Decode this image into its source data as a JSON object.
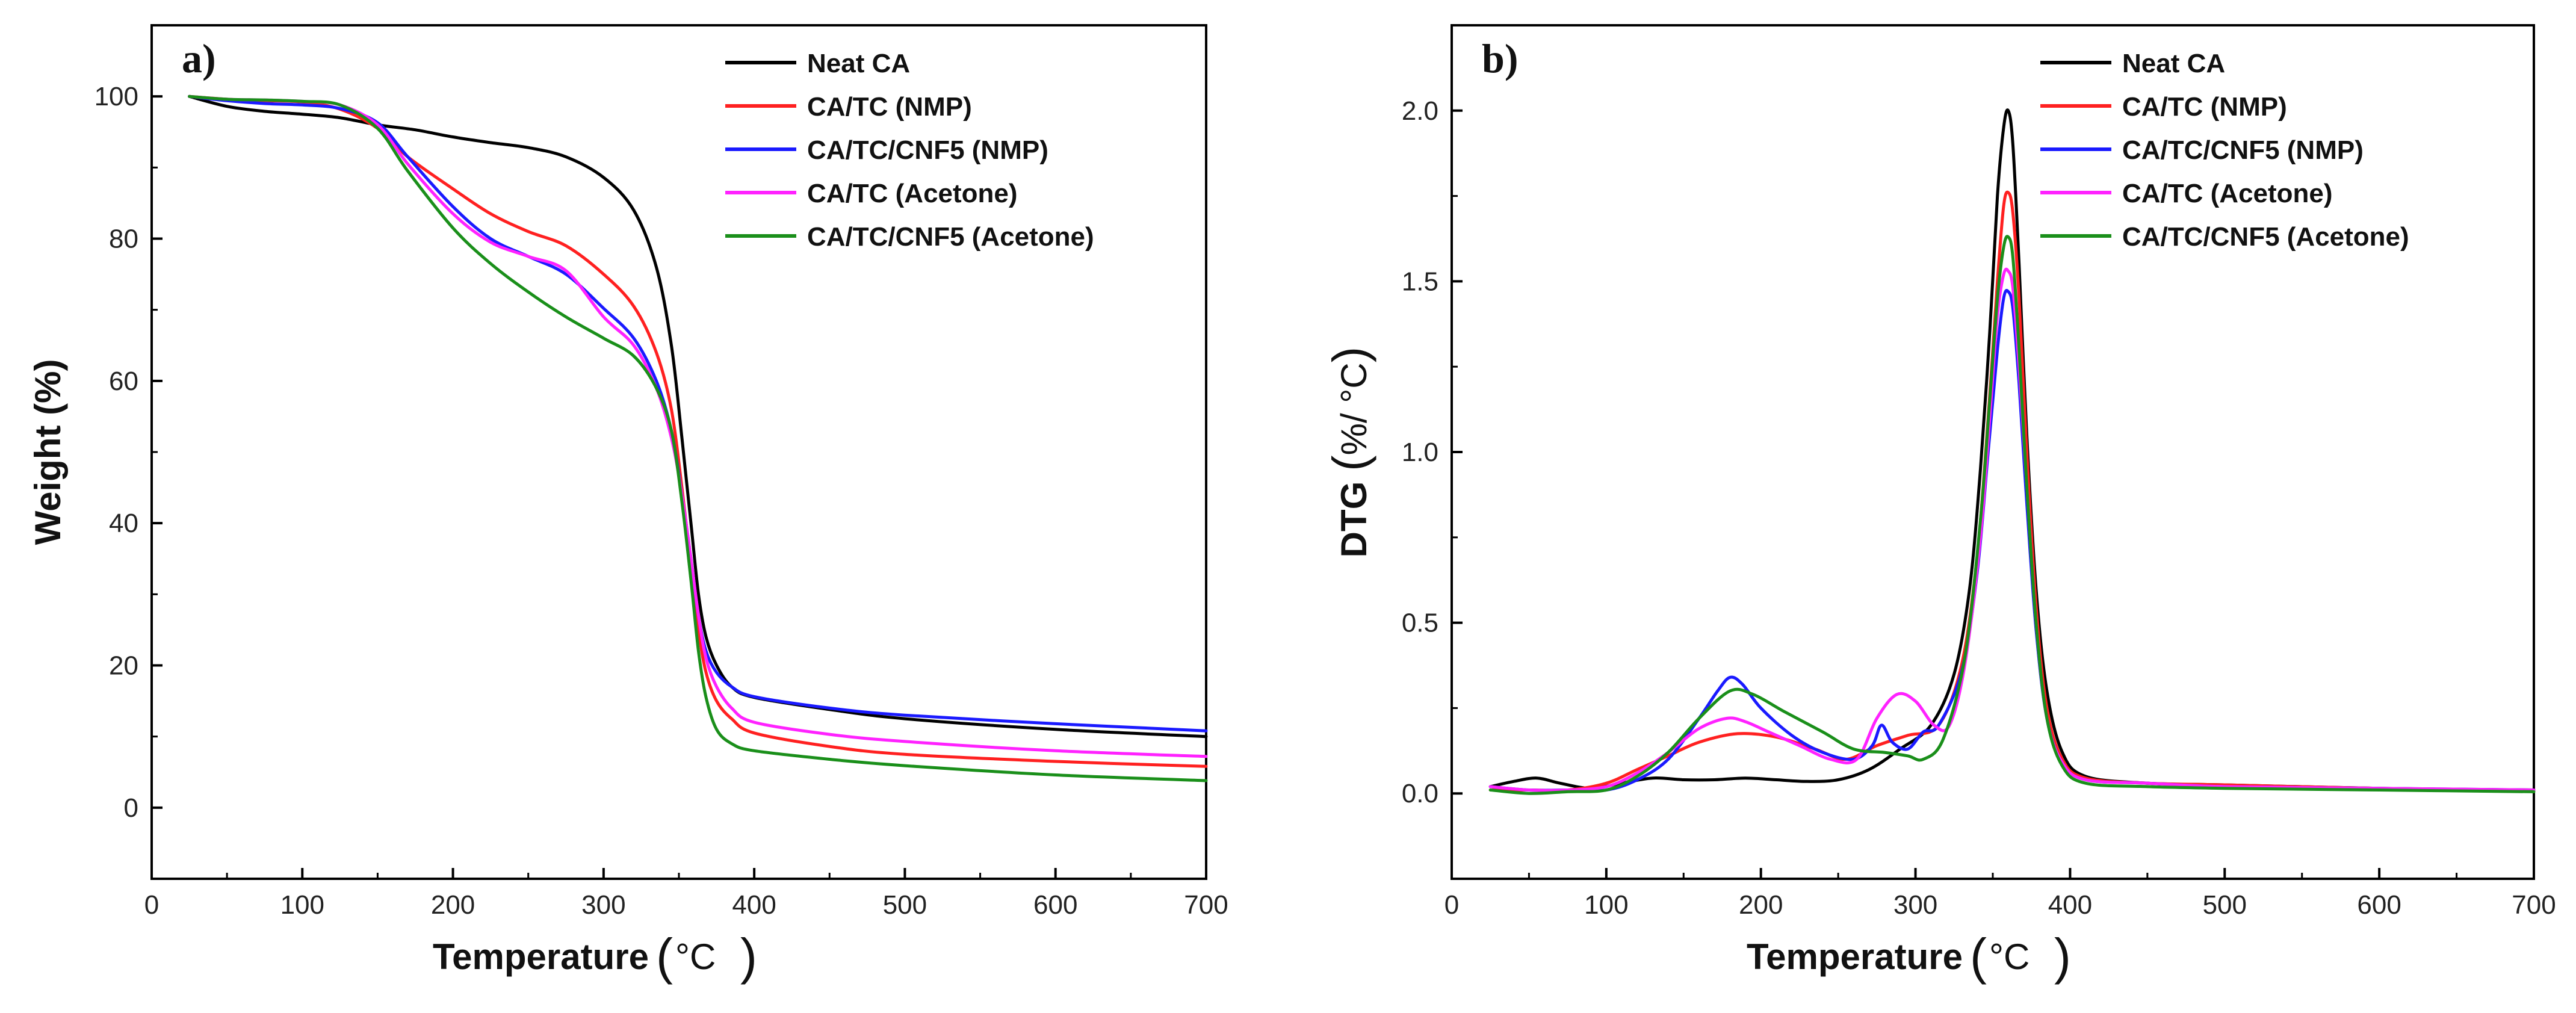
{
  "chart_data": [
    {
      "type": "line",
      "panel_label": "a)",
      "xlabel": "Temperature",
      "xunit": "°C",
      "ylabel": "Weight (%)",
      "xlim": [
        0,
        700
      ],
      "ylim": [
        -10,
        110
      ],
      "xticks": [
        0,
        100,
        200,
        300,
        400,
        500,
        600,
        700
      ],
      "yticks": [
        0,
        20,
        40,
        60,
        80,
        100
      ],
      "legend_position": "top-right",
      "series": [
        {
          "name": "Neat CA",
          "color": "#000000",
          "x": [
            25,
            50,
            75,
            100,
            125,
            150,
            175,
            200,
            225,
            250,
            275,
            300,
            320,
            335,
            345,
            352,
            358,
            363,
            368,
            375,
            385,
            400,
            450,
            500,
            600,
            700
          ],
          "y": [
            100,
            98.6,
            97.9,
            97.5,
            97,
            96,
            95.3,
            94.3,
            93.5,
            92.8,
            91.5,
            88.6,
            84,
            76,
            65,
            52,
            40,
            30,
            24,
            20,
            17,
            15.5,
            13.8,
            12.5,
            11,
            10
          ]
        },
        {
          "name": "CA/TC (NMP)",
          "color": "#ff2020",
          "x": [
            25,
            50,
            75,
            100,
            125,
            150,
            170,
            200,
            225,
            250,
            275,
            300,
            320,
            335,
            345,
            352,
            358,
            363,
            368,
            375,
            385,
            400,
            450,
            500,
            600,
            700
          ],
          "y": [
            100,
            99.6,
            99.4,
            99.2,
            98.2,
            95.5,
            91.5,
            87,
            83.5,
            81,
            79,
            75,
            70.5,
            64,
            56,
            45,
            34,
            25,
            19,
            15,
            12.5,
            10.5,
            8.6,
            7.5,
            6.5,
            5.8
          ]
        },
        {
          "name": "CA/TC/CNF5 (NMP)",
          "color": "#1a1aff",
          "x": [
            25,
            50,
            75,
            100,
            125,
            150,
            170,
            200,
            225,
            250,
            275,
            300,
            320,
            335,
            345,
            352,
            358,
            363,
            368,
            375,
            385,
            400,
            450,
            500,
            600,
            700
          ],
          "y": [
            100,
            99.4,
            99,
            98.8,
            98.3,
            96.3,
            91.5,
            84.5,
            80,
            77.5,
            75,
            70.2,
            66,
            60,
            53,
            44,
            35,
            27,
            22,
            19,
            17,
            15.6,
            14,
            13,
            11.8,
            10.8
          ]
        },
        {
          "name": "CA/TC (Acetone)",
          "color": "#ff22ff",
          "x": [
            25,
            50,
            75,
            100,
            125,
            150,
            170,
            200,
            225,
            250,
            275,
            300,
            320,
            335,
            345,
            352,
            358,
            363,
            368,
            375,
            385,
            400,
            450,
            500,
            600,
            700
          ],
          "y": [
            100,
            99.6,
            99.5,
            99.3,
            98.8,
            96,
            90.5,
            83.5,
            79.5,
            77.5,
            75.5,
            69,
            65,
            59,
            52,
            44,
            35,
            27,
            21,
            17,
            14,
            12,
            10.3,
            9.3,
            8,
            7.2
          ]
        },
        {
          "name": "CA/TC/CNF5 (Acetone)",
          "color": "#1a8f1a",
          "x": [
            25,
            50,
            75,
            100,
            125,
            150,
            170,
            200,
            225,
            250,
            275,
            300,
            320,
            335,
            345,
            352,
            358,
            363,
            368,
            375,
            385,
            400,
            450,
            500,
            600,
            700
          ],
          "y": [
            100,
            99.6,
            99.5,
            99.3,
            98.8,
            95.5,
            89.5,
            81.5,
            76.5,
            72.5,
            69,
            66,
            63.5,
            59,
            53,
            43,
            32,
            22,
            15.5,
            11,
            9,
            8,
            6.8,
            5.9,
            4.6,
            3.8
          ]
        }
      ]
    },
    {
      "type": "line",
      "panel_label": "b)",
      "xlabel": "Temperature",
      "xunit": "°C",
      "ylabel": "DTG",
      "yunit": "%/ °C",
      "xlim": [
        0,
        700
      ],
      "ylim": [
        -0.25,
        2.25
      ],
      "xticks": [
        0,
        100,
        200,
        300,
        400,
        500,
        600,
        700
      ],
      "yticks": [
        0.0,
        0.5,
        1.0,
        1.5,
        2.0
      ],
      "legend_position": "top-right",
      "series": [
        {
          "name": "Neat CA",
          "color": "#000000",
          "x": [
            25,
            40,
            55,
            70,
            90,
            110,
            130,
            150,
            170,
            190,
            210,
            230,
            250,
            270,
            290,
            310,
            325,
            335,
            342,
            348,
            353,
            357,
            360,
            363,
            367,
            372,
            378,
            385,
            395,
            410,
            450,
            500,
            600,
            700
          ],
          "y": [
            0.02,
            0.035,
            0.045,
            0.03,
            0.015,
            0.03,
            0.045,
            0.04,
            0.04,
            0.045,
            0.04,
            0.035,
            0.04,
            0.07,
            0.13,
            0.2,
            0.35,
            0.6,
            0.95,
            1.35,
            1.75,
            1.95,
            2.0,
            1.9,
            1.55,
            1.05,
            0.6,
            0.3,
            0.12,
            0.05,
            0.03,
            0.025,
            0.015,
            0.01
          ]
        },
        {
          "name": "CA/TC (NMP)",
          "color": "#ff2020",
          "x": [
            25,
            50,
            75,
            100,
            120,
            140,
            160,
            185,
            210,
            235,
            255,
            275,
            295,
            315,
            330,
            340,
            347,
            353,
            357,
            360,
            363,
            367,
            372,
            378,
            385,
            395,
            410,
            450,
            500,
            600,
            700
          ],
          "y": [
            0.01,
            0.01,
            0.01,
            0.03,
            0.07,
            0.11,
            0.15,
            0.175,
            0.165,
            0.13,
            0.1,
            0.14,
            0.17,
            0.2,
            0.38,
            0.7,
            1.1,
            1.5,
            1.72,
            1.76,
            1.7,
            1.45,
            1.0,
            0.55,
            0.25,
            0.1,
            0.045,
            0.03,
            0.025,
            0.015,
            0.01
          ]
        },
        {
          "name": "CA/TC/CNF5 (NMP)",
          "color": "#1a1aff",
          "x": [
            25,
            50,
            75,
            100,
            120,
            140,
            160,
            172,
            180,
            188,
            200,
            220,
            240,
            260,
            272,
            278,
            285,
            295,
            305,
            315,
            330,
            340,
            347,
            353,
            357,
            360,
            363,
            367,
            372,
            378,
            385,
            395,
            410,
            450,
            500,
            600,
            700
          ],
          "y": [
            0.02,
            0.01,
            0.01,
            0.01,
            0.04,
            0.1,
            0.22,
            0.3,
            0.34,
            0.32,
            0.25,
            0.17,
            0.12,
            0.1,
            0.14,
            0.2,
            0.15,
            0.13,
            0.18,
            0.2,
            0.36,
            0.65,
            1.0,
            1.3,
            1.45,
            1.47,
            1.42,
            1.2,
            0.85,
            0.48,
            0.22,
            0.09,
            0.04,
            0.03,
            0.02,
            0.015,
            0.01
          ]
        },
        {
          "name": "CA/TC (Acetone)",
          "color": "#ff22ff",
          "x": [
            25,
            50,
            75,
            100,
            120,
            140,
            160,
            178,
            190,
            205,
            225,
            245,
            262,
            275,
            288,
            300,
            312,
            322,
            332,
            342,
            348,
            353,
            357,
            360,
            363,
            367,
            372,
            378,
            385,
            395,
            410,
            450,
            500,
            600,
            700
          ],
          "y": [
            0.02,
            0.01,
            0.01,
            0.02,
            0.06,
            0.12,
            0.19,
            0.22,
            0.21,
            0.18,
            0.14,
            0.1,
            0.1,
            0.22,
            0.29,
            0.27,
            0.2,
            0.2,
            0.38,
            0.75,
            1.1,
            1.4,
            1.52,
            1.53,
            1.48,
            1.25,
            0.9,
            0.5,
            0.22,
            0.09,
            0.04,
            0.03,
            0.02,
            0.015,
            0.01
          ]
        },
        {
          "name": "CA/TC/CNF5 (Acetone)",
          "color": "#1a8f1a",
          "x": [
            25,
            50,
            75,
            100,
            120,
            140,
            160,
            180,
            195,
            215,
            240,
            260,
            280,
            295,
            305,
            318,
            332,
            342,
            348,
            353,
            357,
            360,
            363,
            367,
            372,
            378,
            385,
            395,
            410,
            450,
            500,
            600,
            700
          ],
          "y": [
            0.01,
            0.0,
            0.005,
            0.01,
            0.05,
            0.12,
            0.22,
            0.3,
            0.29,
            0.24,
            0.18,
            0.13,
            0.12,
            0.11,
            0.1,
            0.16,
            0.4,
            0.8,
            1.15,
            1.45,
            1.6,
            1.63,
            1.57,
            1.3,
            0.9,
            0.5,
            0.22,
            0.08,
            0.03,
            0.02,
            0.015,
            0.01,
            0.005
          ]
        }
      ]
    }
  ]
}
